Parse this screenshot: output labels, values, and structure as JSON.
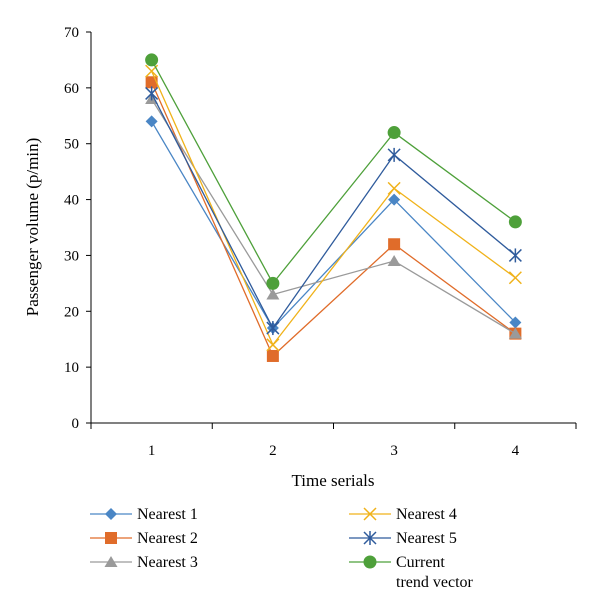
{
  "chart_data": {
    "type": "line",
    "title": "",
    "xlabel": "Time serials",
    "ylabel": "Passenger volume (p/min)",
    "categories": [
      "1",
      "2",
      "3",
      "4"
    ],
    "ylim": [
      0,
      70
    ],
    "yticks": [
      0,
      10,
      20,
      30,
      40,
      50,
      60,
      70
    ],
    "grid": false,
    "legend_position": "bottom",
    "series": [
      {
        "name": "Nearest 1",
        "values": [
          54,
          17,
          40,
          18
        ],
        "color": "#4a86c5",
        "marker": "diamond"
      },
      {
        "name": "Nearest 2",
        "values": [
          61,
          12,
          32,
          16
        ],
        "color": "#e06c2a",
        "marker": "square"
      },
      {
        "name": "Nearest 3",
        "values": [
          58,
          23,
          29,
          16
        ],
        "color": "#9a9a9a",
        "marker": "triangle"
      },
      {
        "name": "Nearest 4",
        "values": [
          63,
          14,
          42,
          26
        ],
        "color": "#f0b21a",
        "marker": "x"
      },
      {
        "name": "Nearest 5",
        "values": [
          59,
          17,
          48,
          30
        ],
        "color": "#2f5b9c",
        "marker": "asterisk"
      },
      {
        "name": "Current trend vector",
        "values": [
          65,
          25,
          52,
          36
        ],
        "color": "#4ea03a",
        "marker": "circle"
      }
    ]
  }
}
